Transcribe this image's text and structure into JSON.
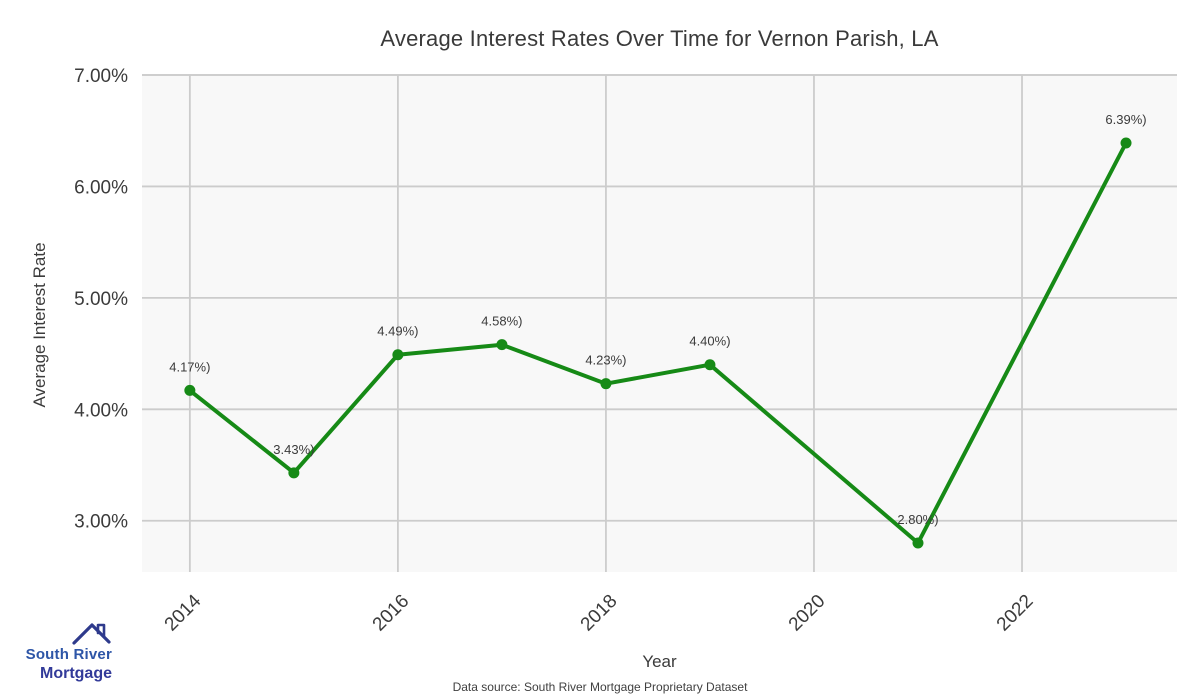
{
  "chart_data": {
    "type": "line",
    "title": "Average Interest Rates Over Time for Vernon Parish, LA",
    "xlabel": "Year",
    "ylabel": "Average Interest Rate",
    "x": [
      2014,
      2015,
      2016,
      2017,
      2018,
      2019,
      2021,
      2023
    ],
    "values": [
      4.17,
      3.43,
      4.49,
      4.58,
      4.23,
      4.4,
      2.8,
      6.39
    ],
    "point_labels": [
      "4.17%)",
      "3.43%)",
      "4.49%)",
      "4.58%)",
      "4.23%)",
      "4.40%)",
      "2.80%)",
      "6.39%)"
    ],
    "xlim": [
      2013.54,
      2023.49
    ],
    "ylim": [
      2.54,
      7.0
    ],
    "yticks": {
      "values": [
        3,
        4,
        5,
        6,
        7
      ],
      "labels": [
        "3.00%",
        "4.00%",
        "5.00%",
        "6.00%",
        "7.00%"
      ]
    },
    "xticks": {
      "values": [
        2014,
        2016,
        2018,
        2020,
        2022
      ],
      "labels": [
        "2014",
        "2016",
        "2018",
        "2020",
        "2022"
      ]
    },
    "grid": true,
    "legend": false,
    "colors": {
      "line": "#168a16",
      "marker": "#168a16",
      "grid": "#cccccc",
      "plot_bg": "#f8f8f8",
      "text": "#3b3b3b"
    }
  },
  "footer": {
    "data_source": "Data source: South River Mortgage Proprietary Dataset",
    "logo": {
      "line1": "South River",
      "line2": "Mortgage",
      "color_primary": "#2d55a7",
      "color_secondary": "#323a99",
      "icon_color": "#2e3a8c"
    }
  }
}
